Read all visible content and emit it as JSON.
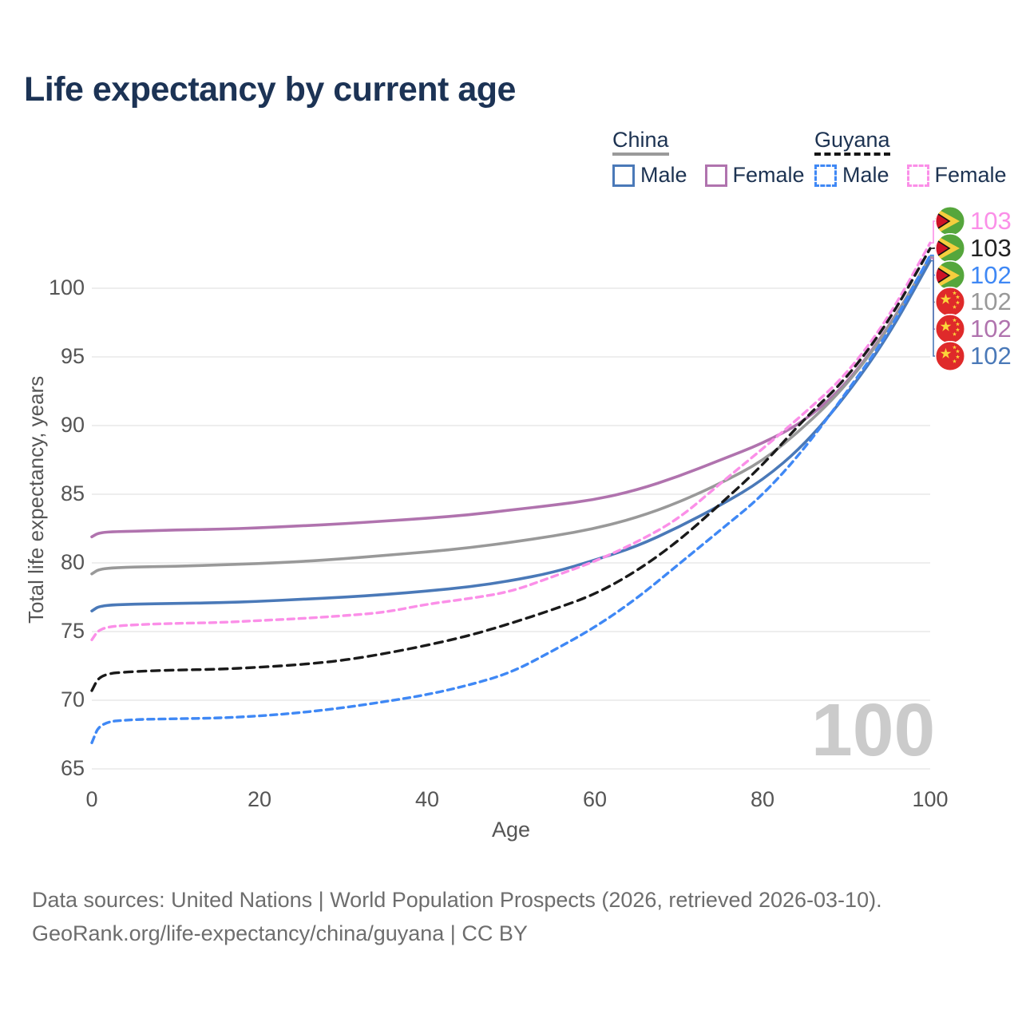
{
  "header": {
    "title": "Life expectancy by current age"
  },
  "legend": {
    "position": "top-right",
    "groups": [
      {
        "label": "China",
        "style": "solid",
        "underline_color": "#9a9a9a",
        "items": [
          {
            "label": "Male",
            "color": "#4a79b8",
            "dashed": false
          },
          {
            "label": "Female",
            "color": "#b073ae",
            "dashed": false
          }
        ]
      },
      {
        "label": "Guyana",
        "style": "dashed",
        "underline_color": "#151515",
        "items": [
          {
            "label": "Male",
            "color": "#3f88f5",
            "dashed": true
          },
          {
            "label": "Female",
            "color": "#fb8fe8",
            "dashed": true
          }
        ]
      }
    ]
  },
  "axes": {
    "y_label": "Total life expectancy, years",
    "x_label": "Age",
    "y_ticks": [
      100,
      95,
      90,
      85,
      80,
      75,
      70,
      65
    ],
    "x_ticks": [
      0,
      20,
      40,
      60,
      80,
      100
    ]
  },
  "watermark": "100",
  "chart_data": {
    "type": "line",
    "title": "Life expectancy by current age",
    "xlabel": "Age",
    "ylabel": "Total life expectancy, years",
    "xlim": [
      0,
      100
    ],
    "ylim": [
      65,
      103.5
    ],
    "grid": "horizontal-only",
    "legend_position": "top-right",
    "x": [
      0,
      1,
      5,
      10,
      15,
      20,
      25,
      30,
      35,
      40,
      45,
      50,
      55,
      60,
      65,
      70,
      75,
      80,
      85,
      90,
      95,
      100
    ],
    "series": [
      {
        "name": "China Female",
        "country": "China",
        "sex": "Female",
        "color": "#b073ae",
        "dashed": false,
        "values": [
          81.9,
          82.25,
          82.3,
          82.4,
          82.45,
          82.55,
          82.7,
          82.85,
          83.05,
          83.25,
          83.5,
          83.85,
          84.2,
          84.6,
          85.3,
          86.3,
          87.5,
          88.7,
          90.3,
          93.0,
          97.1,
          102.2
        ]
      },
      {
        "name": "China Total",
        "country": "China",
        "sex": "Both",
        "color": "#999999",
        "dashed": false,
        "values": [
          79.2,
          79.6,
          79.7,
          79.75,
          79.85,
          79.95,
          80.1,
          80.3,
          80.55,
          80.8,
          81.1,
          81.5,
          81.95,
          82.5,
          83.3,
          84.4,
          85.8,
          87.4,
          89.9,
          92.9,
          97.0,
          102.3
        ]
      },
      {
        "name": "China Male",
        "country": "China",
        "sex": "Male",
        "color": "#4a79b8",
        "dashed": false,
        "values": [
          76.5,
          76.9,
          77.0,
          77.05,
          77.1,
          77.2,
          77.35,
          77.5,
          77.7,
          77.95,
          78.25,
          78.7,
          79.3,
          80.2,
          81.2,
          82.6,
          84.2,
          86.0,
          88.6,
          92.2,
          96.5,
          102.0
        ]
      },
      {
        "name": "Guyana Female",
        "country": "Guyana",
        "sex": "Female",
        "color": "#fb8fe8",
        "dashed": true,
        "values": [
          74.4,
          75.3,
          75.5,
          75.6,
          75.65,
          75.8,
          75.95,
          76.15,
          76.4,
          77.0,
          77.4,
          77.9,
          79.0,
          80.1,
          81.5,
          83.2,
          85.8,
          88.3,
          90.9,
          93.7,
          97.8,
          103.3
        ]
      },
      {
        "name": "Guyana Total",
        "country": "Guyana",
        "sex": "Both",
        "color": "#1a1a1a",
        "dashed": true,
        "values": [
          70.7,
          71.9,
          72.1,
          72.2,
          72.25,
          72.4,
          72.6,
          72.9,
          73.4,
          74.0,
          74.7,
          75.6,
          76.6,
          77.7,
          79.4,
          81.6,
          84.3,
          87.1,
          90.5,
          93.4,
          97.5,
          102.9
        ]
      },
      {
        "name": "Guyana Male",
        "country": "Guyana",
        "sex": "Male",
        "color": "#3f88f5",
        "dashed": true,
        "values": [
          66.9,
          68.4,
          68.6,
          68.65,
          68.7,
          68.85,
          69.1,
          69.45,
          69.9,
          70.4,
          71.1,
          72.0,
          73.6,
          75.3,
          77.4,
          79.9,
          82.4,
          84.9,
          88.3,
          92.4,
          96.7,
          102.4
        ]
      }
    ]
  },
  "end_labels": [
    {
      "value": "103",
      "flag": "guyana",
      "series": "Guyana Female",
      "color": "#fb8fe8"
    },
    {
      "value": "103",
      "flag": "guyana",
      "series": "Guyana Total",
      "color": "#222222"
    },
    {
      "value": "102",
      "flag": "guyana",
      "series": "Guyana Male",
      "color": "#3f88f5"
    },
    {
      "value": "102",
      "flag": "china",
      "series": "China Total",
      "color": "#999999"
    },
    {
      "value": "102",
      "flag": "china",
      "series": "China Female",
      "color": "#b073ae"
    },
    {
      "value": "102",
      "flag": "china",
      "series": "China Male",
      "color": "#4a79b8"
    }
  ],
  "footer": {
    "line1": "Data sources: United Nations | World Population Prospects (2026, retrieved 2026-03-10).",
    "line2": "GeoRank.org/life-expectancy/china/guyana | CC BY"
  }
}
